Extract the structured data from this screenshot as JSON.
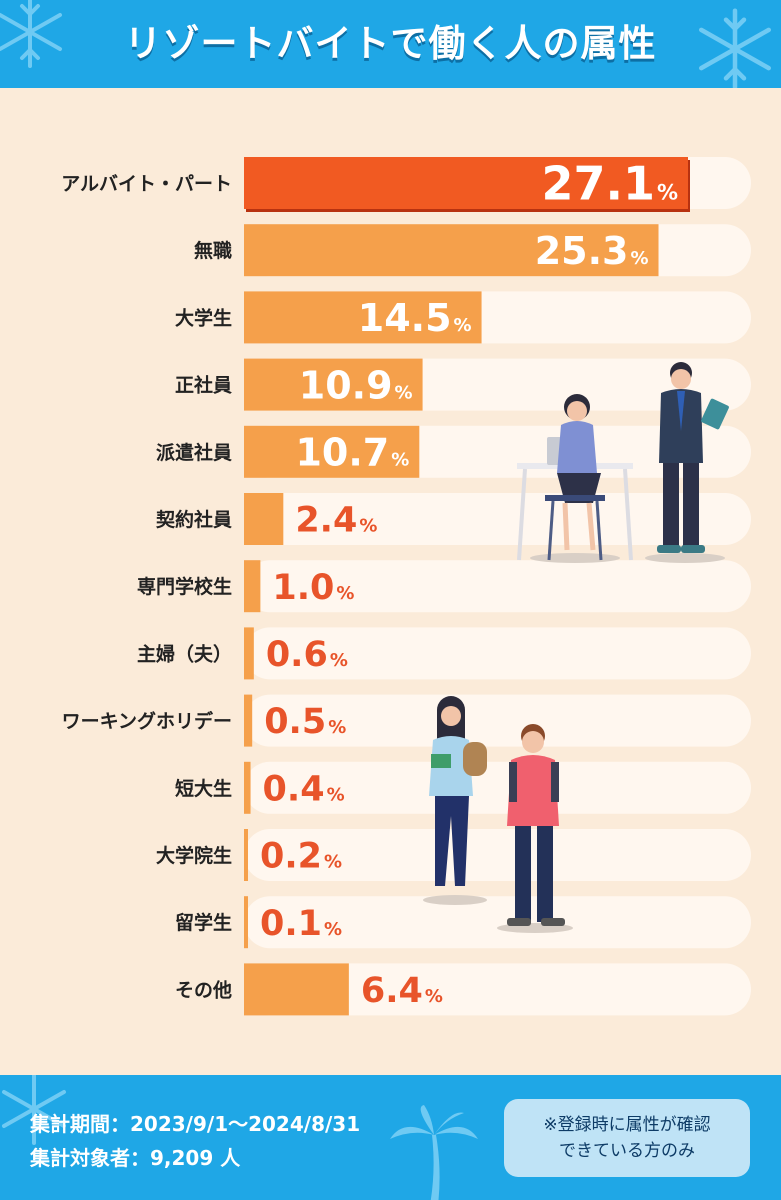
{
  "header": {
    "title": "リゾートバイトで働く人の属性"
  },
  "chart_data": {
    "type": "bar",
    "orientation": "horizontal",
    "categories": [
      "アルバイト・パート",
      "無職",
      "大学生",
      "正社員",
      "派遣社員",
      "契約社員",
      "専門学校生",
      "主婦（夫）",
      "ワーキングホリデー",
      "短大生",
      "大学院生",
      "留学生",
      "その他"
    ],
    "values": [
      27.1,
      25.3,
      14.5,
      10.9,
      10.7,
      2.4,
      1.0,
      0.6,
      0.5,
      0.4,
      0.2,
      0.1,
      6.4
    ],
    "value_labels": [
      "27.1",
      "25.3",
      "14.5",
      "10.9",
      "10.7",
      "2.4",
      "1.0",
      "0.6",
      "0.5",
      "0.4",
      "0.2",
      "0.1",
      "6.4"
    ],
    "unit": "%",
    "highlight_index": 0,
    "colors": {
      "highlight": "#f15a22",
      "bar": "#f5a04b",
      "track": "#fff7ef",
      "value_text": "#e8542a"
    },
    "xlim": [
      0,
      30
    ]
  },
  "footer": {
    "period": "集計期間：2023/9/1〜2024/8/31",
    "subjects": "集計対象者：9,209 人",
    "note_line1": "※登録時に属性が確認",
    "note_line2": "できている方のみ"
  }
}
